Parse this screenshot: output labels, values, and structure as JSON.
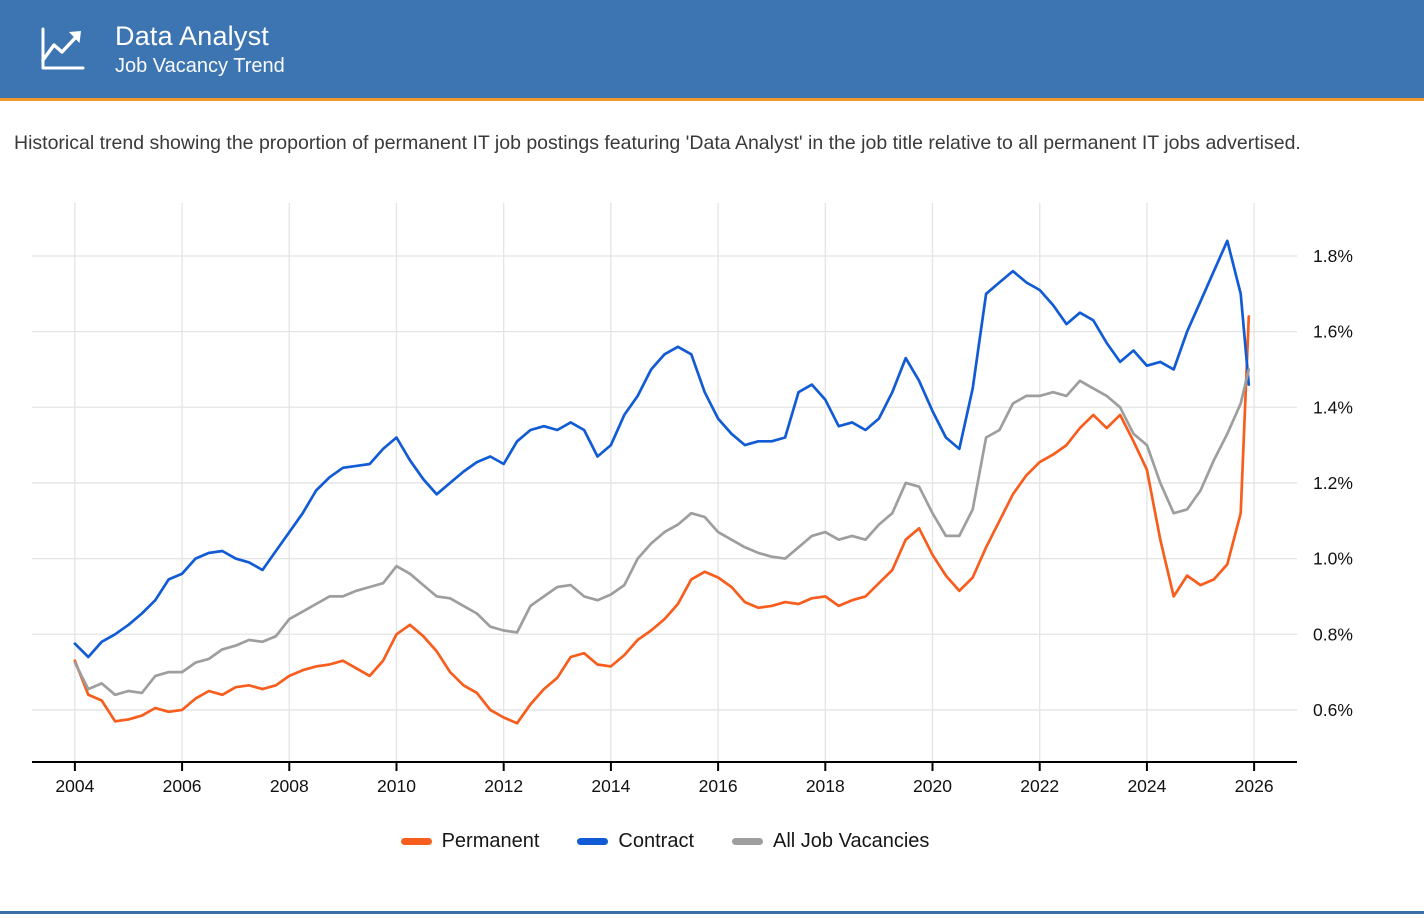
{
  "header": {
    "title": "Data Analyst",
    "subtitle": "Job Vacancy Trend",
    "icon": "trend-line-arrow-icon",
    "background_color": "#3d75b2",
    "accent_border_color": "#ee9b2e"
  },
  "description": "Historical trend showing the proportion of permanent IT job postings featuring 'Data Analyst' in the job title relative to all permanent IT jobs advertised.",
  "footer": {
    "bar_color": "#3a6fa8"
  },
  "chart_data": {
    "type": "line",
    "title": "Data Analyst Job Vacancy Trend",
    "xlabel": "",
    "ylabel": "",
    "grid": true,
    "y_axis_side": "right",
    "legend_position": "bottom",
    "xlim": [
      2003.2,
      2026.8
    ],
    "ylim": [
      0.465,
      1.94
    ],
    "x_ticks": [
      2004,
      2006,
      2008,
      2010,
      2012,
      2014,
      2016,
      2018,
      2020,
      2022,
      2024,
      2026
    ],
    "y_tick_values": [
      0.6,
      0.8,
      1.0,
      1.2,
      1.4,
      1.6,
      1.8
    ],
    "y_tick_labels": [
      "0.6%",
      "0.8%",
      "1.0%",
      "1.2%",
      "1.4%",
      "1.6%",
      "1.8%"
    ],
    "axis_color": "#000000",
    "gridline_color": "#e4e4e4",
    "x": [
      2004.0,
      2004.25,
      2004.5,
      2004.75,
      2005.0,
      2005.25,
      2005.5,
      2005.75,
      2006.0,
      2006.25,
      2006.5,
      2006.75,
      2007.0,
      2007.25,
      2007.5,
      2007.75,
      2008.0,
      2008.25,
      2008.5,
      2008.75,
      2009.0,
      2009.25,
      2009.5,
      2009.75,
      2010.0,
      2010.25,
      2010.5,
      2010.75,
      2011.0,
      2011.25,
      2011.5,
      2011.75,
      2012.0,
      2012.25,
      2012.5,
      2012.75,
      2013.0,
      2013.25,
      2013.5,
      2013.75,
      2014.0,
      2014.25,
      2014.5,
      2014.75,
      2015.0,
      2015.25,
      2015.5,
      2015.75,
      2016.0,
      2016.25,
      2016.5,
      2016.75,
      2017.0,
      2017.25,
      2017.5,
      2017.75,
      2018.0,
      2018.25,
      2018.5,
      2018.75,
      2019.0,
      2019.25,
      2019.5,
      2019.75,
      2020.0,
      2020.25,
      2020.5,
      2020.75,
      2021.0,
      2021.25,
      2021.5,
      2021.75,
      2022.0,
      2022.25,
      2022.5,
      2022.75,
      2023.0,
      2023.25,
      2023.5,
      2023.75,
      2024.0,
      2024.25,
      2024.5,
      2024.75,
      2025.0,
      2025.25,
      2025.5,
      2025.75,
      2025.9
    ],
    "series": [
      {
        "name": "Permanent",
        "color": "#f75d1d",
        "values": [
          0.73,
          0.64,
          0.625,
          0.57,
          0.575,
          0.585,
          0.605,
          0.595,
          0.6,
          0.63,
          0.65,
          0.64,
          0.66,
          0.665,
          0.655,
          0.665,
          0.69,
          0.705,
          0.715,
          0.72,
          0.73,
          0.71,
          0.69,
          0.73,
          0.8,
          0.825,
          0.795,
          0.755,
          0.7,
          0.665,
          0.645,
          0.6,
          0.58,
          0.565,
          0.615,
          0.655,
          0.685,
          0.74,
          0.75,
          0.72,
          0.715,
          0.745,
          0.785,
          0.81,
          0.84,
          0.88,
          0.945,
          0.965,
          0.95,
          0.925,
          0.885,
          0.87,
          0.875,
          0.885,
          0.88,
          0.895,
          0.9,
          0.875,
          0.89,
          0.9,
          0.935,
          0.97,
          1.05,
          1.08,
          1.01,
          0.955,
          0.915,
          0.95,
          1.03,
          1.1,
          1.17,
          1.22,
          1.255,
          1.275,
          1.3,
          1.345,
          1.38,
          1.345,
          1.38,
          1.31,
          1.235,
          1.05,
          0.9,
          0.955,
          0.93,
          0.945,
          0.985,
          1.12,
          1.64
        ]
      },
      {
        "name": "Contract",
        "color": "#115bd5",
        "values": [
          0.775,
          0.74,
          0.78,
          0.8,
          0.825,
          0.855,
          0.89,
          0.945,
          0.96,
          1.0,
          1.015,
          1.02,
          1.0,
          0.99,
          0.97,
          1.02,
          1.07,
          1.12,
          1.18,
          1.215,
          1.24,
          1.245,
          1.25,
          1.29,
          1.32,
          1.26,
          1.21,
          1.17,
          1.2,
          1.23,
          1.255,
          1.27,
          1.25,
          1.31,
          1.34,
          1.35,
          1.34,
          1.36,
          1.34,
          1.27,
          1.3,
          1.38,
          1.43,
          1.5,
          1.54,
          1.56,
          1.54,
          1.44,
          1.37,
          1.33,
          1.3,
          1.31,
          1.31,
          1.32,
          1.44,
          1.46,
          1.42,
          1.35,
          1.36,
          1.34,
          1.37,
          1.44,
          1.53,
          1.47,
          1.39,
          1.32,
          1.29,
          1.45,
          1.7,
          1.73,
          1.76,
          1.73,
          1.71,
          1.67,
          1.62,
          1.65,
          1.63,
          1.57,
          1.52,
          1.55,
          1.51,
          1.52,
          1.5,
          1.6,
          1.68,
          1.76,
          1.84,
          1.7,
          1.46
        ]
      },
      {
        "name": "All Job Vacancies",
        "color": "#9e9e9e",
        "values": [
          0.725,
          0.655,
          0.67,
          0.64,
          0.65,
          0.645,
          0.69,
          0.7,
          0.7,
          0.725,
          0.735,
          0.76,
          0.77,
          0.785,
          0.78,
          0.795,
          0.84,
          0.86,
          0.88,
          0.9,
          0.9,
          0.915,
          0.925,
          0.935,
          0.98,
          0.96,
          0.93,
          0.9,
          0.895,
          0.875,
          0.855,
          0.82,
          0.81,
          0.805,
          0.875,
          0.9,
          0.925,
          0.93,
          0.9,
          0.89,
          0.905,
          0.93,
          1.0,
          1.04,
          1.07,
          1.09,
          1.12,
          1.11,
          1.07,
          1.05,
          1.03,
          1.015,
          1.005,
          1.0,
          1.03,
          1.06,
          1.07,
          1.05,
          1.06,
          1.05,
          1.09,
          1.12,
          1.2,
          1.19,
          1.12,
          1.06,
          1.06,
          1.13,
          1.32,
          1.34,
          1.41,
          1.43,
          1.43,
          1.44,
          1.43,
          1.47,
          1.45,
          1.43,
          1.4,
          1.33,
          1.3,
          1.2,
          1.12,
          1.13,
          1.18,
          1.26,
          1.33,
          1.41,
          1.5
        ]
      }
    ]
  }
}
